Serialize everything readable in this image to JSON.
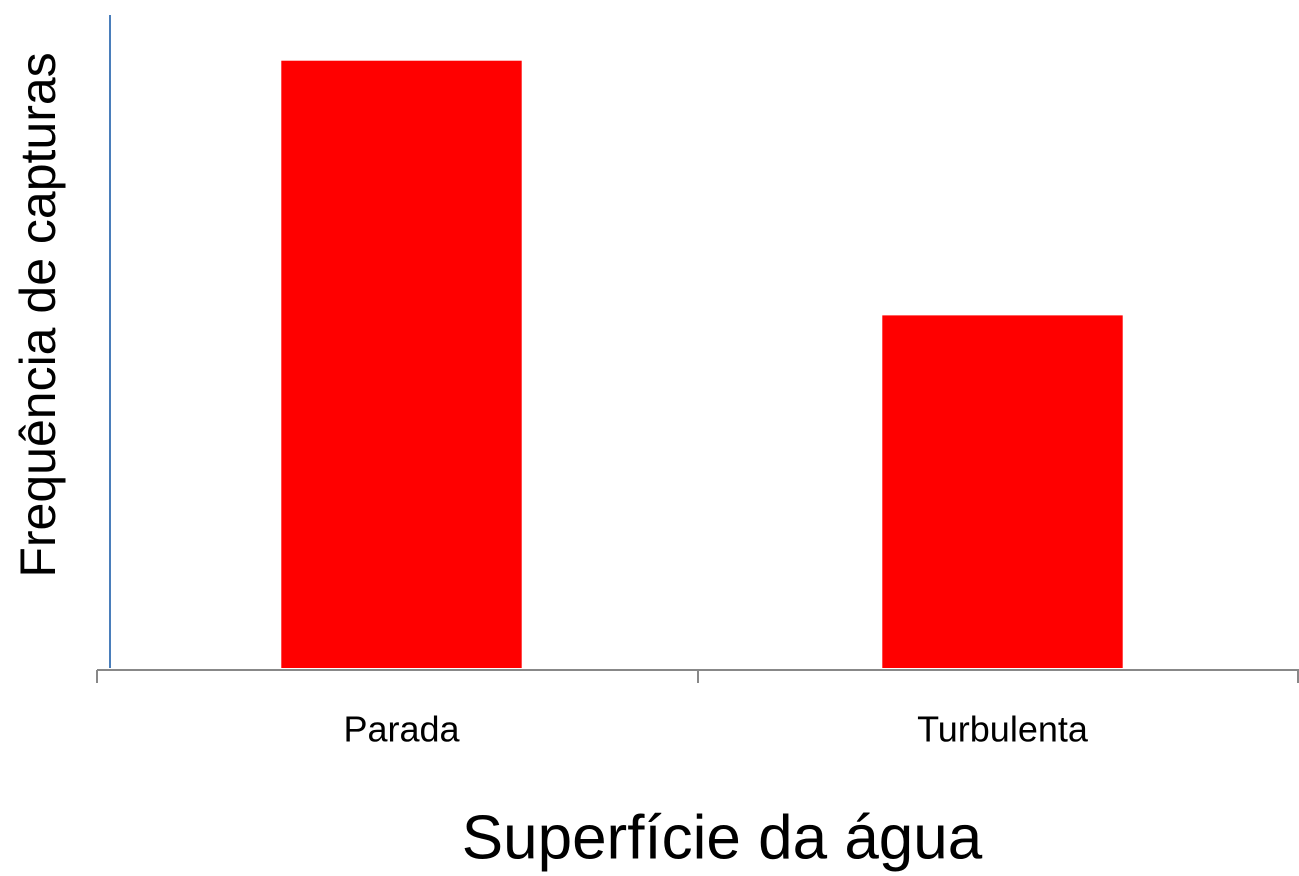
{
  "chart_data": {
    "type": "bar",
    "x_label": "Superfície da água",
    "y_label": "Frequência de capturas",
    "categories": [
      "Parada",
      "Turbulenta"
    ],
    "values": [
      93,
      54
    ],
    "color": "#ff0000",
    "ylim": [
      0,
      100
    ]
  }
}
